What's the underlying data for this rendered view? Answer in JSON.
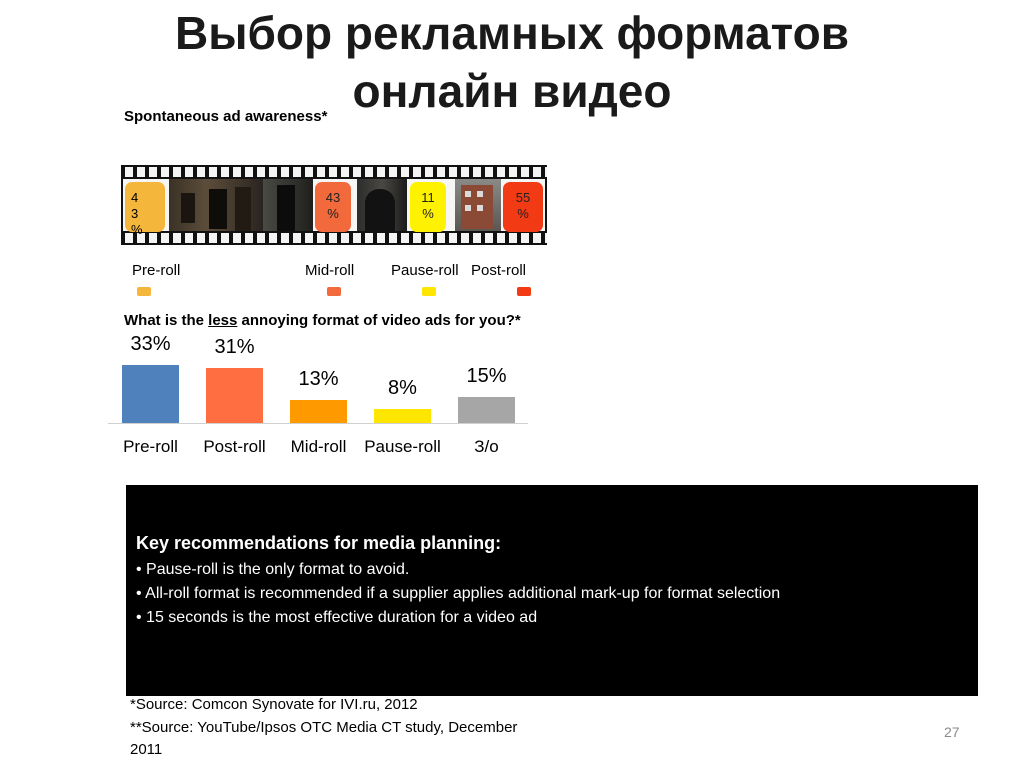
{
  "title": {
    "line1": "Выбор рекламных форматов",
    "line2": "онлайн видео"
  },
  "awareness": {
    "question": "Spontaneous ad awareness*",
    "badges": [
      {
        "name": "pre-roll",
        "text": "4\n3\n%",
        "color": "#F5B73B"
      },
      {
        "name": "mid-roll",
        "text": "43\n%",
        "color": "#F26A3C"
      },
      {
        "name": "pause-roll",
        "text": "11\n%",
        "color": "#FFF200"
      },
      {
        "name": "post-roll",
        "text": "55\n%",
        "color": "#F23A14"
      }
    ],
    "legend": [
      {
        "label": "Pre-roll",
        "color": "#F5B73B"
      },
      {
        "label": "Mid-roll",
        "color": "#F26A3C"
      },
      {
        "label": "Pause-roll",
        "color": "#FFE600"
      },
      {
        "label": "Post-roll",
        "color": "#F23A14"
      }
    ]
  },
  "annoying": {
    "question_before": "What is the ",
    "question_underlined": "less",
    "question_after": " annoying format of video ads for you?*"
  },
  "chart_data": {
    "type": "bar",
    "categories": [
      "Pre-roll",
      "Post-roll",
      "Mid-roll",
      "Pause-roll",
      "З/о"
    ],
    "values": [
      33,
      31,
      13,
      8,
      15
    ],
    "value_labels": [
      "33%",
      "31%",
      "13%",
      "8%",
      "15%"
    ],
    "colors": [
      "#4F81BD",
      "#FF6E40",
      "#FF9900",
      "#FFE600",
      "#A6A6A6"
    ],
    "ylim": [
      0,
      35
    ]
  },
  "recommendations": {
    "heading": "Key recommendations for media planning:",
    "items": [
      "• Pause-roll is the only format to avoid.",
      "• All-roll format is recommended if a supplier applies additional mark-up for format selection",
      "• 15 seconds is the most effective duration for a video ad"
    ]
  },
  "sources": {
    "line1": "*Source: Comcon Synovate for IVI.ru, 2012",
    "line2": "**Source: YouTube/Ipsos OTC Media CT study, December",
    "line3": "2011"
  },
  "page_number": "27"
}
